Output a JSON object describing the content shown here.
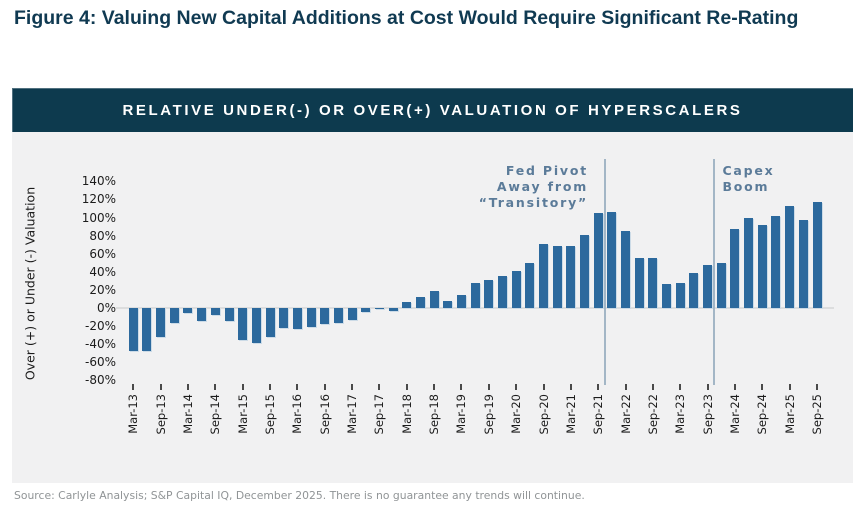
{
  "page": {
    "figure_title": "Figure 4: Valuing New Capital Additions at Cost Would Require Significant Re-Rating",
    "source_note": "Source: Carlyle Analysis; S&P Capital IQ, December 2025. There is no guarantee any trends will continue."
  },
  "banner": {
    "title": "RELATIVE UNDER(-) OR OVER(+) VALUATION OF HYPERSCALERS"
  },
  "chart_data": {
    "type": "bar",
    "title": "RELATIVE UNDER(-) OR OVER(+) VALUATION OF HYPERSCALERS",
    "xlabel": "",
    "ylabel": "Over (+) or Under (-) Valuation",
    "unit": "%",
    "ylim": [
      -80,
      140
    ],
    "ytick_step": 20,
    "yticks": [
      140,
      120,
      100,
      80,
      60,
      40,
      20,
      0,
      -20,
      -40,
      -60,
      -80
    ],
    "grid": false,
    "legend": "none",
    "bar_color": "#2c699d",
    "background_color": "#f1f1f2",
    "banner_color": "#0d3a4e",
    "annotation_color": "#5b7b99",
    "categories": [
      "Mar-13",
      "Jun-13",
      "Sep-13",
      "Dec-13",
      "Mar-14",
      "Jun-14",
      "Sep-14",
      "Dec-14",
      "Mar-15",
      "Jun-15",
      "Sep-15",
      "Dec-15",
      "Mar-16",
      "Jun-16",
      "Sep-16",
      "Dec-16",
      "Mar-17",
      "Jun-17",
      "Sep-17",
      "Dec-17",
      "Mar-18",
      "Jun-18",
      "Sep-18",
      "Dec-18",
      "Mar-19",
      "Jun-19",
      "Sep-19",
      "Dec-19",
      "Mar-20",
      "Jun-20",
      "Sep-20",
      "Dec-20",
      "Mar-21",
      "Jun-21",
      "Sep-21",
      "Dec-21",
      "Mar-22",
      "Jun-22",
      "Sep-22",
      "Dec-22",
      "Mar-23",
      "Jun-23",
      "Sep-23",
      "Dec-23",
      "Mar-24",
      "Jun-24",
      "Sep-24",
      "Dec-24",
      "Mar-25",
      "Jun-25",
      "Sep-25"
    ],
    "values": [
      -48,
      -47,
      -32,
      -17,
      -6,
      -14,
      -8,
      -14,
      -35,
      -39,
      -32,
      -22,
      -23,
      -21,
      -18,
      -17,
      -13,
      -4,
      -1,
      -3,
      7,
      12,
      19,
      8,
      14,
      28,
      31,
      35,
      41,
      50,
      71,
      68,
      69,
      81,
      105,
      106,
      85,
      55,
      55,
      26,
      28,
      39,
      48,
      50,
      87,
      100,
      92,
      102,
      113,
      97,
      117
    ],
    "xtick_labels": [
      "Mar-13",
      "Sep-13",
      "Mar-14",
      "Sep-14",
      "Mar-15",
      "Sep-15",
      "Mar-16",
      "Sep-16",
      "Mar-17",
      "Sep-17",
      "Mar-18",
      "Sep-18",
      "Mar-19",
      "Sep-19",
      "Mar-20",
      "Sep-20",
      "Mar-21",
      "Sep-21",
      "Mar-22",
      "Sep-22",
      "Mar-23",
      "Sep-23",
      "Mar-24",
      "Sep-24",
      "Mar-25",
      "Sep-25"
    ],
    "annotations": [
      {
        "lines": [
          "Fed Pivot",
          "Away from",
          "“Transitory”"
        ],
        "after_index": 34,
        "side": "left"
      },
      {
        "lines": [
          "Capex",
          "Boom"
        ],
        "after_index": 42,
        "side": "right"
      }
    ]
  }
}
